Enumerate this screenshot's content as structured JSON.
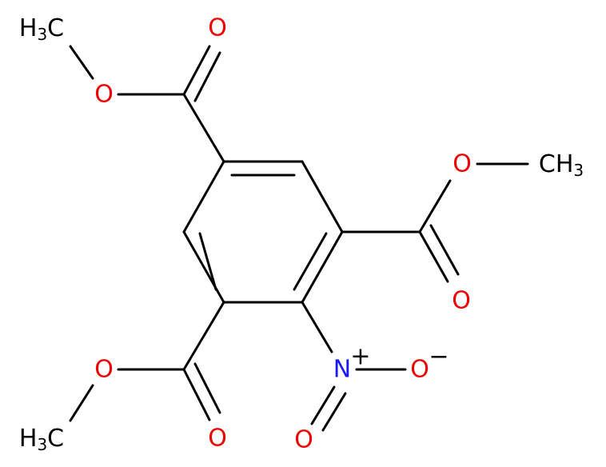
{
  "atoms": {
    "top_carbonyl_o": "O",
    "top_ester_o": "O",
    "top_methyl": {
      "h": "H",
      "sub": "3",
      "c": "C"
    },
    "right_ester_o": "O",
    "right_methyl": {
      "c": "CH",
      "sub": "3"
    },
    "right_carbonyl_o": "O",
    "bottom_ester_o": "O",
    "bottom_methyl": {
      "h": "H",
      "sub": "3",
      "c": "C"
    },
    "bottom_carbonyl_o": "O",
    "nitro_n": {
      "text": "N",
      "charge": "+"
    },
    "nitro_o_minus": {
      "text": "O",
      "charge": "−"
    },
    "nitro_o": "O"
  }
}
